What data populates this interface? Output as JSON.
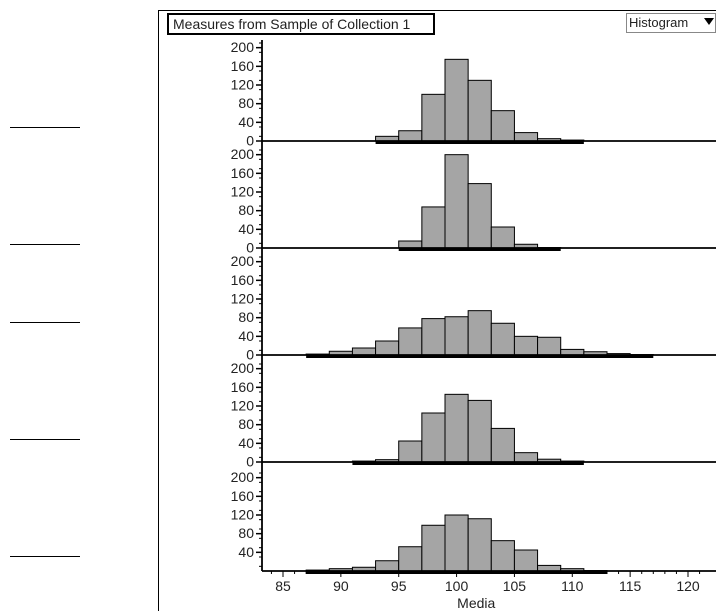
{
  "title": "Measures from Sample of Collection 1",
  "plot_menu": {
    "selected": "Histogram"
  },
  "chart_data": {
    "type": "bar",
    "xlabel": "Media",
    "xlim": [
      82.5,
      122
    ],
    "x_ticks": [
      85,
      90,
      95,
      100,
      105,
      110,
      115,
      120
    ],
    "ylim": [
      0,
      210
    ],
    "y_ticks": [
      0,
      40,
      80,
      120,
      160,
      200
    ],
    "bin_width": 2,
    "bar_color": "#a5a5a5",
    "panels": [
      {
        "bins": [
          [
            93,
            10
          ],
          [
            95,
            22
          ],
          [
            97,
            100
          ],
          [
            99,
            175
          ],
          [
            101,
            130
          ],
          [
            103,
            65
          ],
          [
            105,
            18
          ],
          [
            107,
            5
          ],
          [
            109,
            2
          ]
        ]
      },
      {
        "bins": [
          [
            95,
            15
          ],
          [
            97,
            88
          ],
          [
            99,
            200
          ],
          [
            101,
            138
          ],
          [
            103,
            45
          ],
          [
            105,
            8
          ],
          [
            107,
            1
          ]
        ]
      },
      {
        "bins": [
          [
            87,
            2
          ],
          [
            89,
            8
          ],
          [
            91,
            15
          ],
          [
            93,
            30
          ],
          [
            95,
            58
          ],
          [
            97,
            78
          ],
          [
            99,
            82
          ],
          [
            101,
            95
          ],
          [
            103,
            68
          ],
          [
            105,
            40
          ],
          [
            107,
            38
          ],
          [
            109,
            12
          ],
          [
            111,
            7
          ],
          [
            113,
            3
          ],
          [
            115,
            1
          ]
        ]
      },
      {
        "bins": [
          [
            91,
            2
          ],
          [
            93,
            5
          ],
          [
            95,
            45
          ],
          [
            97,
            105
          ],
          [
            99,
            145
          ],
          [
            101,
            132
          ],
          [
            103,
            72
          ],
          [
            105,
            20
          ],
          [
            107,
            6
          ],
          [
            109,
            2
          ]
        ]
      },
      {
        "bins": [
          [
            87,
            2
          ],
          [
            89,
            5
          ],
          [
            91,
            8
          ],
          [
            93,
            22
          ],
          [
            95,
            52
          ],
          [
            97,
            98
          ],
          [
            99,
            120
          ],
          [
            101,
            112
          ],
          [
            103,
            65
          ],
          [
            105,
            45
          ],
          [
            107,
            12
          ],
          [
            109,
            5
          ],
          [
            111,
            1
          ]
        ]
      }
    ]
  },
  "answer_blanks": [
    "",
    "",
    "",
    "",
    ""
  ]
}
